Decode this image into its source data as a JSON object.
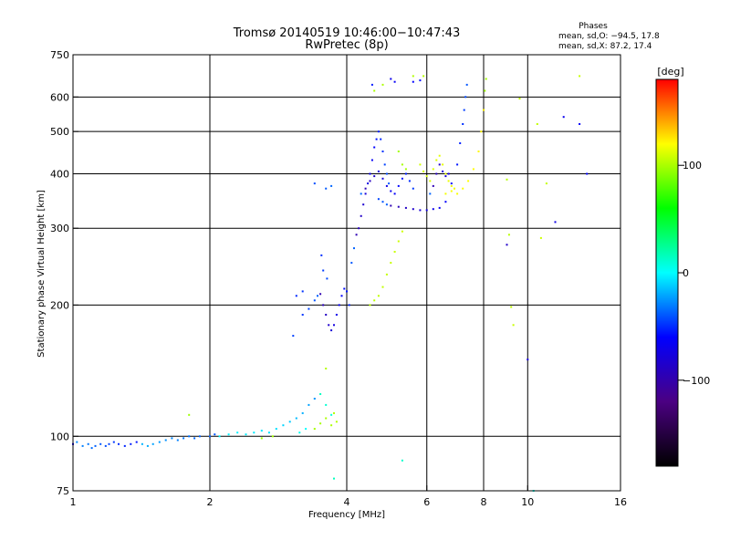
{
  "chart_data": {
    "type": "scatter",
    "title": "Tromsø 20140519 10:46:00−10:47:43",
    "subtitle": "RwPretec (8p)",
    "xlabel": "Frequency [MHz]",
    "ylabel": "Stationary phase Virtual Height [km]",
    "x_scale": "log",
    "y_scale": "log",
    "xlim": [
      1,
      16
    ],
    "ylim": [
      75,
      750
    ],
    "x_ticks": [
      1,
      2,
      4,
      6,
      8,
      10,
      16
    ],
    "y_ticks": [
      75,
      100,
      200,
      300,
      400,
      500,
      600,
      750
    ],
    "grid": true,
    "legend": {
      "title": "Phases",
      "lines": [
        "mean, sd,O: −94.5, 17.8",
        "mean, sd,X:  87.2, 17.4"
      ],
      "placement": "top-right"
    },
    "colorbar": {
      "label": "[deg]",
      "ticks": [
        "100",
        "0",
        "−100"
      ],
      "tick_values": [
        100,
        0,
        -100
      ],
      "range": [
        -180,
        180
      ],
      "colors": [
        "#000000",
        "#4b0082",
        "#0000ff",
        "#00ffff",
        "#00ff00",
        "#ffff00",
        "#ff0000"
      ]
    },
    "series": [
      {
        "name": "O",
        "points": [
          [
            1.0,
            96
          ],
          [
            1.02,
            97
          ],
          [
            1.05,
            95
          ],
          [
            1.08,
            96
          ],
          [
            1.1,
            94
          ],
          [
            1.12,
            95
          ],
          [
            1.15,
            96
          ],
          [
            1.18,
            95
          ],
          [
            1.2,
            96
          ],
          [
            1.23,
            97
          ],
          [
            1.26,
            96
          ],
          [
            1.3,
            95
          ],
          [
            1.34,
            96
          ],
          [
            1.38,
            97
          ],
          [
            1.42,
            96
          ],
          [
            1.46,
            95
          ],
          [
            1.5,
            96
          ],
          [
            1.55,
            97
          ],
          [
            1.6,
            98
          ],
          [
            1.65,
            99
          ],
          [
            1.7,
            98
          ],
          [
            1.75,
            99
          ],
          [
            1.8,
            100
          ],
          [
            1.85,
            99
          ],
          [
            1.9,
            100
          ],
          [
            2.0,
            100
          ],
          [
            2.05,
            101
          ],
          [
            2.1,
            100
          ],
          [
            2.2,
            101
          ],
          [
            2.3,
            102
          ],
          [
            2.4,
            101
          ],
          [
            2.5,
            102
          ],
          [
            2.6,
            103
          ],
          [
            2.7,
            102
          ],
          [
            2.8,
            104
          ],
          [
            2.9,
            106
          ],
          [
            3.0,
            108
          ],
          [
            3.1,
            110
          ],
          [
            3.2,
            113
          ],
          [
            3.3,
            118
          ],
          [
            3.4,
            122
          ],
          [
            3.5,
            125
          ],
          [
            3.6,
            118
          ],
          [
            3.7,
            112
          ],
          [
            3.15,
            102
          ],
          [
            3.25,
            104
          ],
          [
            3.2,
            190
          ],
          [
            3.3,
            196
          ],
          [
            3.4,
            205
          ],
          [
            3.45,
            210
          ],
          [
            3.5,
            212
          ],
          [
            3.55,
            200
          ],
          [
            3.6,
            190
          ],
          [
            3.65,
            180
          ],
          [
            3.7,
            175
          ],
          [
            3.75,
            180
          ],
          [
            3.8,
            190
          ],
          [
            3.85,
            200
          ],
          [
            3.9,
            210
          ],
          [
            3.95,
            218
          ],
          [
            4.0,
            215
          ],
          [
            4.05,
            200
          ],
          [
            3.52,
            260
          ],
          [
            3.55,
            240
          ],
          [
            3.62,
            230
          ],
          [
            4.1,
            250
          ],
          [
            4.15,
            270
          ],
          [
            4.2,
            290
          ],
          [
            4.25,
            300
          ],
          [
            4.3,
            320
          ],
          [
            4.35,
            340
          ],
          [
            4.4,
            360
          ],
          [
            4.45,
            380
          ],
          [
            4.5,
            400
          ],
          [
            4.55,
            430
          ],
          [
            4.6,
            460
          ],
          [
            4.65,
            480
          ],
          [
            4.7,
            500
          ],
          [
            4.75,
            480
          ],
          [
            4.8,
            450
          ],
          [
            4.85,
            420
          ],
          [
            4.9,
            400
          ],
          [
            4.95,
            380
          ],
          [
            4.3,
            360
          ],
          [
            4.4,
            370
          ],
          [
            4.5,
            385
          ],
          [
            4.6,
            395
          ],
          [
            4.7,
            405
          ],
          [
            4.8,
            390
          ],
          [
            4.9,
            375
          ],
          [
            5.0,
            365
          ],
          [
            5.1,
            360
          ],
          [
            5.2,
            375
          ],
          [
            5.3,
            390
          ],
          [
            5.4,
            400
          ],
          [
            5.5,
            385
          ],
          [
            5.6,
            370
          ],
          [
            4.7,
            350
          ],
          [
            4.8,
            345
          ],
          [
            4.9,
            340
          ],
          [
            5.0,
            338
          ],
          [
            5.2,
            336
          ],
          [
            5.4,
            334
          ],
          [
            5.6,
            332
          ],
          [
            5.8,
            330
          ],
          [
            6.0,
            330
          ],
          [
            6.2,
            332
          ],
          [
            6.4,
            334
          ],
          [
            6.6,
            345
          ],
          [
            6.8,
            380
          ],
          [
            7.0,
            420
          ],
          [
            7.1,
            470
          ],
          [
            7.2,
            520
          ],
          [
            7.25,
            560
          ],
          [
            7.3,
            600
          ],
          [
            7.35,
            640
          ],
          [
            6.1,
            360
          ],
          [
            6.2,
            375
          ],
          [
            6.3,
            400
          ],
          [
            6.4,
            420
          ],
          [
            6.5,
            405
          ],
          [
            6.6,
            395
          ],
          [
            6.7,
            400
          ],
          [
            5.0,
            660
          ],
          [
            5.1,
            650
          ],
          [
            5.6,
            650
          ],
          [
            5.8,
            655
          ],
          [
            4.55,
            640
          ],
          [
            3.1,
            210
          ],
          [
            3.2,
            215
          ],
          [
            3.05,
            170
          ],
          [
            3.4,
            380
          ],
          [
            3.6,
            370
          ],
          [
            3.7,
            375
          ],
          [
            3.75,
            80
          ],
          [
            5.3,
            88
          ],
          [
            9.0,
            275
          ],
          [
            10.3,
            75
          ],
          [
            10.0,
            150
          ],
          [
            11.5,
            310
          ],
          [
            12.0,
            540
          ],
          [
            13.0,
            520
          ],
          [
            13.5,
            400
          ]
        ]
      },
      {
        "name": "X",
        "points": [
          [
            1.8,
            112
          ],
          [
            2.6,
            99
          ],
          [
            2.75,
            100
          ],
          [
            3.4,
            104
          ],
          [
            3.5,
            107
          ],
          [
            3.6,
            110
          ],
          [
            3.7,
            106
          ],
          [
            3.75,
            113
          ],
          [
            3.8,
            108
          ],
          [
            3.6,
            143
          ],
          [
            4.5,
            200
          ],
          [
            4.6,
            205
          ],
          [
            4.7,
            210
          ],
          [
            4.8,
            220
          ],
          [
            4.9,
            235
          ],
          [
            5.0,
            250
          ],
          [
            5.1,
            265
          ],
          [
            5.2,
            280
          ],
          [
            5.3,
            295
          ],
          [
            5.8,
            420
          ],
          [
            5.9,
            405
          ],
          [
            6.0,
            395
          ],
          [
            6.1,
            385
          ],
          [
            6.2,
            410
          ],
          [
            6.3,
            430
          ],
          [
            6.4,
            440
          ],
          [
            6.5,
            420
          ],
          [
            6.6,
            400
          ],
          [
            6.7,
            385
          ],
          [
            6.8,
            375
          ],
          [
            6.9,
            370
          ],
          [
            6.6,
            360
          ],
          [
            6.8,
            365
          ],
          [
            7.0,
            360
          ],
          [
            7.2,
            370
          ],
          [
            7.4,
            385
          ],
          [
            7.6,
            410
          ],
          [
            7.8,
            450
          ],
          [
            7.9,
            500
          ],
          [
            8.0,
            560
          ],
          [
            8.05,
            620
          ],
          [
            8.1,
            660
          ],
          [
            5.2,
            450
          ],
          [
            5.3,
            420
          ],
          [
            5.4,
            410
          ],
          [
            4.6,
            620
          ],
          [
            4.8,
            640
          ],
          [
            5.6,
            670
          ],
          [
            5.9,
            670
          ],
          [
            9.0,
            388
          ],
          [
            9.1,
            290
          ],
          [
            9.2,
            198
          ],
          [
            9.6,
            595
          ],
          [
            10.5,
            520
          ],
          [
            11.0,
            380
          ],
          [
            13.0,
            670
          ],
          [
            9.3,
            180
          ],
          [
            10.7,
            285
          ]
        ]
      }
    ]
  }
}
